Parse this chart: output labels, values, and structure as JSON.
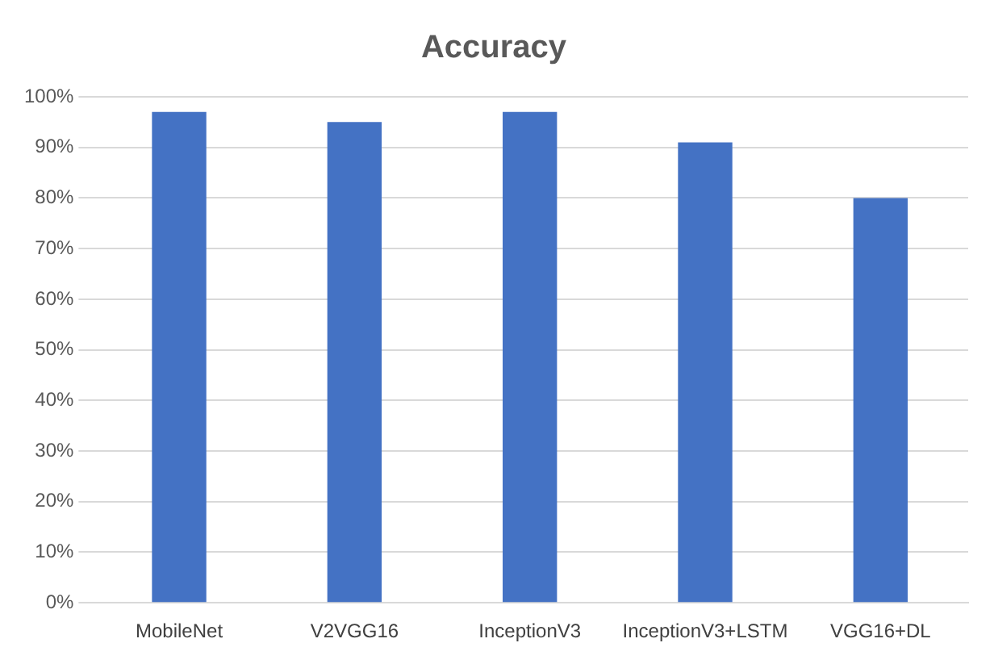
{
  "chart_data": {
    "type": "bar",
    "title": "Accuracy",
    "categories": [
      "MobileNet",
      "V2VGG16",
      "InceptionV3",
      "InceptionV3+LSTM",
      "VGG16+DL"
    ],
    "values": [
      97,
      95,
      97,
      91,
      80
    ],
    "color": "#4472c4",
    "ylim": [
      0,
      100
    ],
    "yticks": [
      {
        "value": 0,
        "label": "0%"
      },
      {
        "value": 10,
        "label": "10%"
      },
      {
        "value": 20,
        "label": "20%"
      },
      {
        "value": 30,
        "label": "30%"
      },
      {
        "value": 40,
        "label": "40%"
      },
      {
        "value": 50,
        "label": "50%"
      },
      {
        "value": 60,
        "label": "60%"
      },
      {
        "value": 70,
        "label": "70%"
      },
      {
        "value": 80,
        "label": "80%"
      },
      {
        "value": 90,
        "label": "90%"
      },
      {
        "value": 100,
        "label": "100%"
      }
    ],
    "grid": "y",
    "legend": false
  }
}
